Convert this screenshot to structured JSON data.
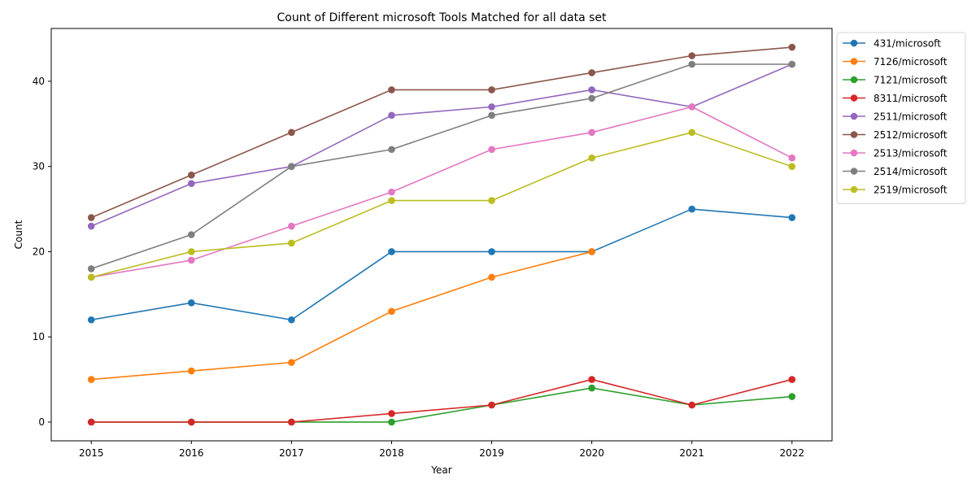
{
  "chart_data": {
    "type": "line",
    "title": "Count of Different microsoft Tools Matched for all data set",
    "xlabel": "Year",
    "ylabel": "Count",
    "x": [
      2015,
      2016,
      2017,
      2018,
      2019,
      2020,
      2021,
      2022
    ],
    "xlim": [
      2014.6,
      2022.4
    ],
    "ylim": [
      -2.2,
      46.2
    ],
    "yticks": [
      0,
      10,
      20,
      30,
      40
    ],
    "grid": false,
    "legend_position": "outside-top-right",
    "series": [
      {
        "name": "431/microsoft",
        "color": "#1f77b4",
        "values": [
          12,
          14,
          12,
          20,
          20,
          20,
          25,
          24
        ]
      },
      {
        "name": "7126/microsoft",
        "color": "#ff7f0e",
        "values": [
          5,
          6,
          7,
          13,
          17,
          20,
          null,
          null
        ]
      },
      {
        "name": "7121/microsoft",
        "color": "#2ca02c",
        "values": [
          0,
          0,
          0,
          0,
          2,
          4,
          2,
          3
        ]
      },
      {
        "name": "8311/microsoft",
        "color": "#d62728",
        "values": [
          0,
          0,
          0,
          1,
          2,
          5,
          2,
          5
        ]
      },
      {
        "name": "2511/microsoft",
        "color": "#9467bd",
        "values": [
          23,
          28,
          30,
          36,
          37,
          39,
          37,
          42
        ]
      },
      {
        "name": "2512/microsoft",
        "color": "#8c564b",
        "values": [
          24,
          29,
          34,
          39,
          39,
          41,
          43,
          44
        ]
      },
      {
        "name": "2513/microsoft",
        "color": "#e377c2",
        "values": [
          17,
          19,
          23,
          27,
          32,
          34,
          37,
          31
        ]
      },
      {
        "name": "2514/microsoft",
        "color": "#7f7f7f",
        "values": [
          18,
          22,
          30,
          32,
          36,
          38,
          42,
          42
        ]
      },
      {
        "name": "2519/microsoft",
        "color": "#bcbd22",
        "values": [
          17,
          20,
          21,
          26,
          26,
          31,
          34,
          30
        ]
      }
    ]
  }
}
